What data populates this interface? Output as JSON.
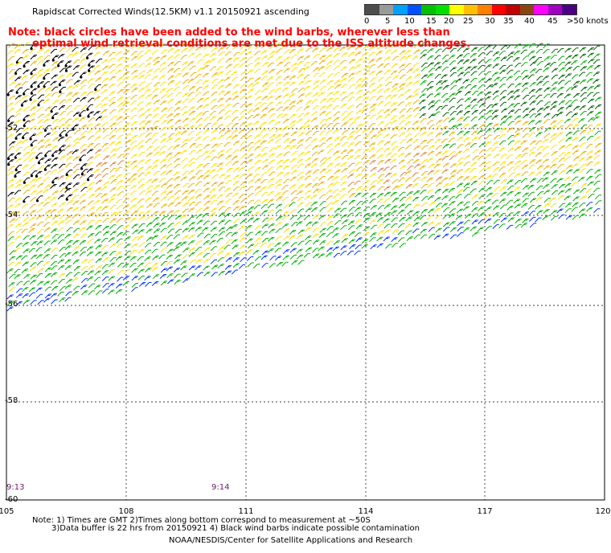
{
  "title": "Rapidscat Corrected Winds(12.5KM) v1.1 20150921 ascending",
  "note_line1": "Note: black circles have been added to the wind barbs, wherever less than",
  "note_line2": "optimal wind retrieval conditions are met due to the ISS altitude changes.",
  "legend": {
    "unit": "knots",
    "ticks": [
      "0",
      "5",
      "10",
      "15",
      "20",
      "25",
      "30",
      "35",
      "40",
      "45",
      ">50 knots"
    ],
    "colors": [
      "#4d4d4d",
      "#9a9a9a",
      "#00a0ff",
      "#0050ff",
      "#00c000",
      "#00e000",
      "#ffff00",
      "#ffc000",
      "#ff8000",
      "#ff0000",
      "#c00000",
      "#8b4513",
      "#ff00ff",
      "#a000c0",
      "#4b0082"
    ]
  },
  "axes": {
    "x_ticks": [
      "105",
      "108",
      "111",
      "114",
      "117",
      "120"
    ],
    "y_ticks": [
      "-52",
      "-54",
      "-56",
      "-58",
      "-60"
    ]
  },
  "time_tags": [
    "9:13",
    "9:14"
  ],
  "footer": {
    "line1": "Note: 1) Times are GMT 2)Times along bottom correspond to measurement at ~50S",
    "line2": "3)Data buffer is 22 hrs from 20150921 4) Black wind barbs indicate possible contamination",
    "credit": "NOAA/NESDIS/Center for Satellite Applications and Research"
  },
  "colors": {
    "grid": "#000000",
    "note_text": "#ff0000",
    "time_tag": "#6a1b6a",
    "barb_yellow": "#ffe000",
    "barb_gold": "#f0b000",
    "barb_orange": "#e08040",
    "barb_green": "#00b000",
    "barb_darkgreen": "#006400",
    "barb_blue": "#0030ff",
    "barb_black": "#000000"
  }
}
